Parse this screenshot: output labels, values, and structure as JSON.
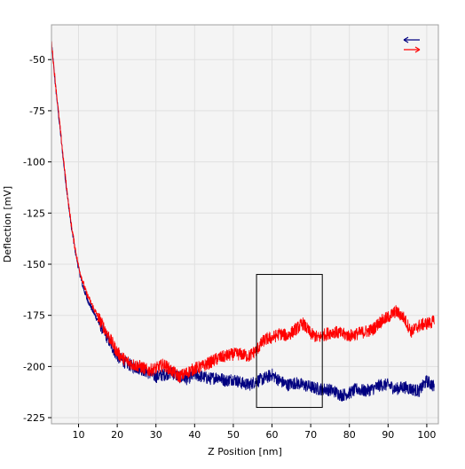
{
  "chart_data": {
    "type": "line",
    "title": "",
    "xlabel": "Z Position [nm]",
    "ylabel": "Deflection [mV]",
    "xlim": [
      3,
      103
    ],
    "ylim": [
      -228,
      -33
    ],
    "xticks": [
      10,
      20,
      30,
      40,
      50,
      60,
      70,
      80,
      90,
      100
    ],
    "yticks": [
      -50,
      -75,
      -100,
      -125,
      -150,
      -175,
      -200,
      -225
    ],
    "grid": true,
    "plot_background": "#f4f4f4",
    "grid_color": "#e0e0e0",
    "legend": {
      "position": "top-right",
      "entries": [
        {
          "symbol": "←",
          "color": "#000080"
        },
        {
          "symbol": "→",
          "color": "#ff0000"
        }
      ]
    },
    "series": [
      {
        "color": "#000080",
        "direction": "retract",
        "x": [
          3,
          4,
          5,
          6,
          7,
          8,
          9,
          10,
          11,
          12,
          14,
          16,
          18,
          20,
          22,
          24,
          26,
          28,
          30,
          32,
          34,
          36,
          38,
          40,
          42,
          44,
          46,
          48,
          50,
          52,
          54,
          56,
          58,
          60,
          62,
          64,
          66,
          68,
          70,
          72,
          74,
          76,
          78,
          80,
          82,
          84,
          86,
          88,
          90,
          92,
          94,
          96,
          98,
          100,
          102
        ],
        "y": [
          -42,
          -62,
          -80,
          -98,
          -115,
          -130,
          -142,
          -152,
          -160,
          -166,
          -174,
          -181,
          -188,
          -195,
          -198,
          -200,
          -201,
          -203,
          -205,
          -204,
          -203,
          -205,
          -206,
          -204,
          -205,
          -206,
          -205,
          -207,
          -206,
          -208,
          -209,
          -207,
          -206,
          -204,
          -207,
          -209,
          -208,
          -209,
          -210,
          -211,
          -211,
          -212,
          -214,
          -213,
          -211,
          -212,
          -211,
          -209,
          -209,
          -211,
          -210,
          -211,
          -212,
          -207,
          -210
        ]
      },
      {
        "color": "#ff0000",
        "direction": "approach",
        "x": [
          3,
          4,
          5,
          6,
          7,
          8,
          9,
          10,
          11,
          12,
          14,
          16,
          18,
          20,
          22,
          24,
          26,
          28,
          30,
          32,
          34,
          36,
          38,
          40,
          42,
          44,
          46,
          48,
          50,
          52,
          54,
          56,
          58,
          60,
          62,
          64,
          66,
          68,
          70,
          72,
          74,
          76,
          78,
          80,
          82,
          84,
          86,
          88,
          90,
          92,
          94,
          96,
          98,
          100,
          102
        ],
        "y": [
          -41,
          -61,
          -79,
          -97,
          -114,
          -129,
          -141,
          -151,
          -158,
          -164,
          -172,
          -179,
          -186,
          -193,
          -197,
          -199,
          -200,
          -202,
          -201,
          -199,
          -202,
          -205,
          -203,
          -201,
          -200,
          -198,
          -196,
          -195,
          -194,
          -194,
          -195,
          -192,
          -187,
          -186,
          -184,
          -185,
          -182,
          -179,
          -184,
          -186,
          -184,
          -183,
          -184,
          -185,
          -184,
          -183,
          -182,
          -178,
          -176,
          -173,
          -176,
          -183,
          -180,
          -179,
          -178
        ]
      }
    ],
    "annotation_box": {
      "x": [
        56,
        73
      ],
      "y": [
        -220,
        -155
      ]
    }
  }
}
